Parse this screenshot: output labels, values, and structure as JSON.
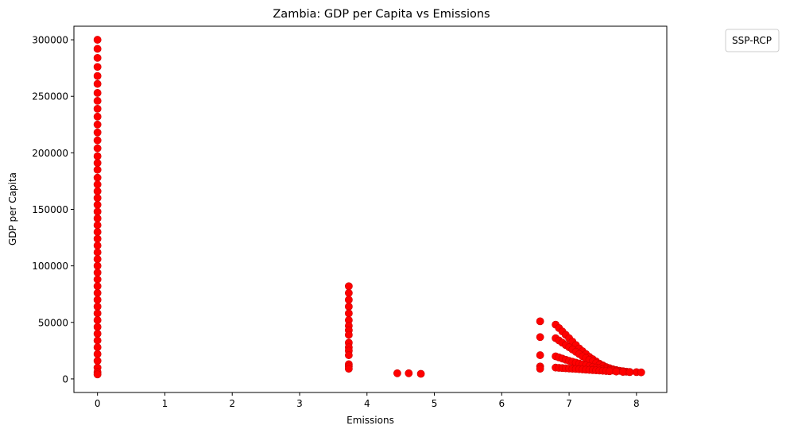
{
  "chart_data": {
    "type": "scatter",
    "title": "Zambia: GDP per Capita vs Emissions",
    "xlabel": "Emissions",
    "ylabel": "GDP per Capita",
    "xlim": [
      -0.35,
      8.45
    ],
    "ylim": [
      -12000,
      312000
    ],
    "xticks": [
      0,
      1,
      2,
      3,
      4,
      5,
      6,
      7,
      8
    ],
    "yticks": [
      0,
      50000,
      100000,
      150000,
      200000,
      250000,
      300000
    ],
    "grid": false,
    "legend": {
      "title": "SSP-RCP",
      "placement": "outside-top-right",
      "entries": []
    },
    "marker_color": "#ff0000",
    "marker_edge_color": "#cc0000",
    "series": [
      {
        "points": [
          [
            0,
            300000
          ],
          [
            0,
            292000
          ],
          [
            0,
            284000
          ],
          [
            0,
            276000
          ],
          [
            0,
            268000
          ],
          [
            0,
            261000
          ],
          [
            0,
            253000
          ],
          [
            0,
            246000
          ],
          [
            0,
            239000
          ],
          [
            0,
            232000
          ],
          [
            0,
            225000
          ],
          [
            0,
            218000
          ],
          [
            0,
            211000
          ],
          [
            0,
            204000
          ],
          [
            0,
            197000
          ],
          [
            0,
            191000
          ],
          [
            0,
            185000
          ],
          [
            0,
            178000
          ],
          [
            0,
            172000
          ],
          [
            0,
            166000
          ],
          [
            0,
            160000
          ],
          [
            0,
            154000
          ],
          [
            0,
            148000
          ],
          [
            0,
            142000
          ],
          [
            0,
            136000
          ],
          [
            0,
            130000
          ],
          [
            0,
            124000
          ],
          [
            0,
            118000
          ],
          [
            0,
            112000
          ],
          [
            0,
            106000
          ],
          [
            0,
            100000
          ],
          [
            0,
            94000
          ],
          [
            0,
            88000
          ],
          [
            0,
            82000
          ],
          [
            0,
            76000
          ],
          [
            0,
            70000
          ],
          [
            0,
            64000
          ],
          [
            0,
            58000
          ],
          [
            0,
            52000
          ],
          [
            0,
            46000
          ],
          [
            0,
            40000
          ],
          [
            0,
            34000
          ],
          [
            0,
            28000
          ],
          [
            0,
            22000
          ],
          [
            0,
            16000
          ],
          [
            0,
            10000
          ],
          [
            0,
            6000
          ],
          [
            0,
            4000
          ],
          [
            3.73,
            82000
          ],
          [
            3.73,
            76000
          ],
          [
            3.73,
            70000
          ],
          [
            3.73,
            64000
          ],
          [
            3.73,
            58000
          ],
          [
            3.73,
            52000
          ],
          [
            3.73,
            47000
          ],
          [
            3.73,
            43000
          ],
          [
            3.73,
            39000
          ],
          [
            3.73,
            32000
          ],
          [
            3.73,
            28000
          ],
          [
            3.73,
            25000
          ],
          [
            3.73,
            21000
          ],
          [
            3.73,
            13000
          ],
          [
            3.73,
            11000
          ],
          [
            3.73,
            9000
          ],
          [
            4.45,
            5000
          ],
          [
            4.62,
            5000
          ],
          [
            4.8,
            4500
          ],
          [
            6.57,
            51000
          ],
          [
            6.57,
            37000
          ],
          [
            6.57,
            21000
          ],
          [
            6.57,
            11000
          ],
          [
            6.57,
            9000
          ],
          [
            6.8,
            48000
          ],
          [
            6.85,
            45000
          ],
          [
            6.9,
            42000
          ],
          [
            6.95,
            39000
          ],
          [
            7.0,
            36000
          ],
          [
            7.05,
            33000
          ],
          [
            7.1,
            30000
          ],
          [
            7.15,
            27000
          ],
          [
            7.2,
            24500
          ],
          [
            7.25,
            22000
          ],
          [
            7.3,
            19500
          ],
          [
            7.35,
            17500
          ],
          [
            7.4,
            15500
          ],
          [
            7.45,
            13500
          ],
          [
            7.5,
            12000
          ],
          [
            7.55,
            10500
          ],
          [
            7.6,
            9500
          ],
          [
            7.65,
            8500
          ],
          [
            7.7,
            7800
          ],
          [
            7.75,
            7200
          ],
          [
            7.8,
            6800
          ],
          [
            7.85,
            6400
          ],
          [
            7.9,
            6200
          ],
          [
            8.0,
            6000
          ],
          [
            8.07,
            5800
          ],
          [
            6.8,
            36000
          ],
          [
            6.85,
            34000
          ],
          [
            6.9,
            32000
          ],
          [
            6.95,
            30000
          ],
          [
            7.0,
            28000
          ],
          [
            7.05,
            26000
          ],
          [
            7.1,
            24000
          ],
          [
            7.15,
            22000
          ],
          [
            7.2,
            20000
          ],
          [
            7.25,
            18500
          ],
          [
            7.3,
            17000
          ],
          [
            7.35,
            15500
          ],
          [
            7.4,
            14000
          ],
          [
            7.45,
            12500
          ],
          [
            7.5,
            11200
          ],
          [
            7.55,
            10000
          ],
          [
            7.6,
            9000
          ],
          [
            7.65,
            8200
          ],
          [
            7.7,
            7500
          ],
          [
            7.8,
            6800
          ],
          [
            6.8,
            20000
          ],
          [
            6.85,
            19000
          ],
          [
            6.9,
            18000
          ],
          [
            6.95,
            17000
          ],
          [
            7.0,
            16000
          ],
          [
            7.05,
            15200
          ],
          [
            7.1,
            14400
          ],
          [
            7.15,
            13600
          ],
          [
            7.2,
            12800
          ],
          [
            7.25,
            12000
          ],
          [
            7.3,
            11300
          ],
          [
            7.35,
            10600
          ],
          [
            7.4,
            10000
          ],
          [
            7.45,
            9400
          ],
          [
            7.5,
            8800
          ],
          [
            7.55,
            8300
          ],
          [
            7.6,
            7800
          ],
          [
            7.65,
            7400
          ],
          [
            7.7,
            7000
          ],
          [
            7.8,
            6500
          ],
          [
            6.8,
            10000
          ],
          [
            6.85,
            9800
          ],
          [
            6.9,
            9600
          ],
          [
            6.95,
            9400
          ],
          [
            7.0,
            9200
          ],
          [
            7.05,
            9000
          ],
          [
            7.1,
            8800
          ],
          [
            7.15,
            8600
          ],
          [
            7.2,
            8400
          ],
          [
            7.25,
            8200
          ],
          [
            7.3,
            8000
          ],
          [
            7.35,
            7800
          ],
          [
            7.4,
            7600
          ],
          [
            7.45,
            7400
          ],
          [
            7.5,
            7200
          ],
          [
            7.55,
            7000
          ],
          [
            7.6,
            6800
          ],
          [
            7.7,
            6500
          ],
          [
            7.8,
            6200
          ],
          [
            7.9,
            6000
          ]
        ]
      }
    ]
  }
}
